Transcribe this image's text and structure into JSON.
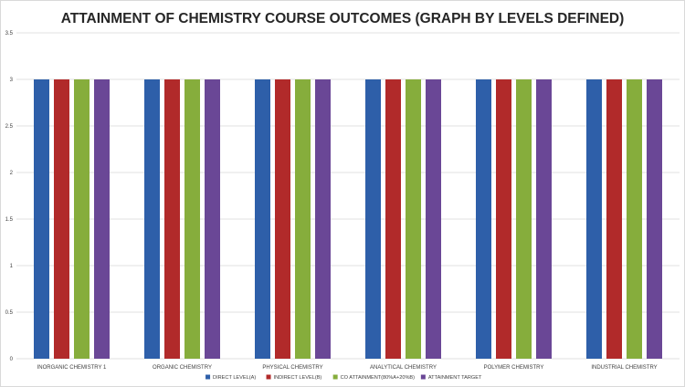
{
  "chart_data": {
    "type": "bar",
    "title": "ATTAINMENT OF CHEMISTRY COURSE OUTCOMES (GRAPH BY LEVELS DEFINED)",
    "xlabel": "",
    "ylabel": "",
    "ylim": [
      0,
      3.5
    ],
    "yticks": [
      "0",
      "0.5",
      "1",
      "1.5",
      "2",
      "2.5",
      "3",
      "3.5"
    ],
    "grid": true,
    "legend_position": "bottom",
    "categories": [
      "INORGANIC CHEMISTRY 1",
      "ORGANIC CHEMISTRY",
      "PHYSICAL CHEMISTRY",
      "ANALYTICAL CHEMISTRY",
      "POLYMER CHEMISTRY",
      "INDUSTRIAL CHEMISTRY"
    ],
    "series": [
      {
        "name": "DIRECT LEVEL(A)",
        "color": "#2e5fa9",
        "values": [
          3,
          3,
          3,
          3,
          3,
          3
        ]
      },
      {
        "name": "INDIRECT LEVEL(B)",
        "color": "#b12a2a",
        "values": [
          3,
          3,
          3,
          3,
          3,
          3
        ]
      },
      {
        "name": "CO ATTAINMENT(80%A+20%B)",
        "color": "#86ad3c",
        "values": [
          3,
          3,
          3,
          3,
          3,
          3
        ]
      },
      {
        "name": "ATTAINMENT TARGET",
        "color": "#6a4796",
        "values": [
          3,
          3,
          3,
          3,
          3,
          3
        ]
      }
    ]
  }
}
